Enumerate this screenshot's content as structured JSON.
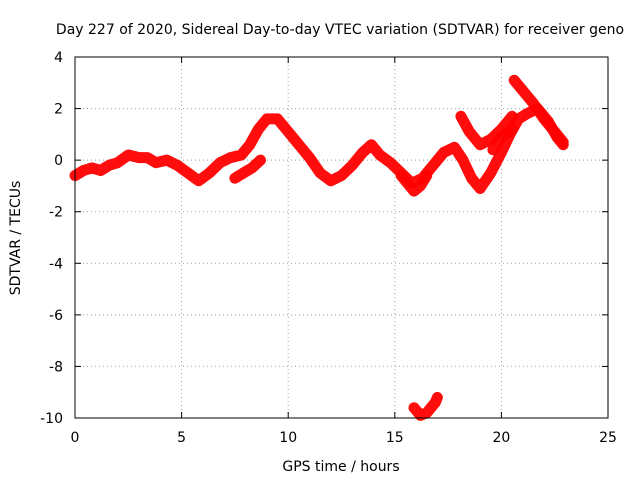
{
  "chart_data": {
    "type": "line",
    "title": "Day 227 of 2020, Sidereal Day-to-day VTEC variation (SDTVAR) for receiver geno",
    "xlabel": "GPS time / hours",
    "ylabel": "SDTVAR / TECUs",
    "xlim": [
      0,
      25
    ],
    "ylim": [
      -10,
      4
    ],
    "xticks": [
      0,
      5,
      10,
      15,
      20,
      25
    ],
    "yticks": [
      -10,
      -8,
      -6,
      -4,
      -2,
      0,
      2,
      4
    ],
    "grid": true,
    "legend": "none",
    "series_color": "#ff0000",
    "series": [
      {
        "values": [
          [
            0.0,
            -0.6
          ],
          [
            0.4,
            -0.4
          ],
          [
            0.8,
            -0.3
          ],
          [
            1.2,
            -0.4
          ],
          [
            1.6,
            -0.2
          ],
          [
            2.0,
            -0.1
          ],
          [
            2.5,
            0.2
          ],
          [
            3.0,
            0.1
          ],
          [
            3.4,
            0.1
          ],
          [
            3.8,
            -0.1
          ],
          [
            4.3,
            0.0
          ],
          [
            4.8,
            -0.2
          ],
          [
            5.3,
            -0.5
          ],
          [
            5.8,
            -0.8
          ],
          [
            6.3,
            -0.5
          ],
          [
            6.8,
            -0.1
          ],
          [
            7.3,
            0.1
          ],
          [
            7.8,
            0.2
          ],
          [
            8.2,
            0.6
          ],
          [
            8.6,
            1.2
          ],
          [
            9.0,
            1.6
          ],
          [
            9.5,
            1.6
          ],
          [
            10.0,
            1.1
          ],
          [
            10.5,
            0.6
          ],
          [
            11.0,
            0.1
          ],
          [
            11.5,
            -0.5
          ],
          [
            12.0,
            -0.8
          ],
          [
            12.5,
            -0.6
          ],
          [
            13.0,
            -0.2
          ],
          [
            13.5,
            0.3
          ],
          [
            13.9,
            0.6
          ],
          [
            14.3,
            0.2
          ],
          [
            14.8,
            -0.1
          ],
          [
            15.3,
            -0.5
          ],
          [
            15.8,
            -0.9
          ],
          [
            16.3,
            -0.7
          ],
          [
            16.8,
            -0.2
          ],
          [
            17.3,
            0.3
          ],
          [
            17.8,
            0.5
          ],
          [
            18.2,
            0.0
          ],
          [
            18.6,
            -0.7
          ],
          [
            19.0,
            -1.1
          ],
          [
            19.5,
            -0.5
          ],
          [
            20.0,
            0.3
          ],
          [
            20.4,
            1.0
          ],
          [
            20.8,
            1.6
          ],
          [
            21.2,
            1.8
          ],
          [
            21.7,
            2.0
          ],
          [
            22.2,
            1.5
          ],
          [
            22.6,
            0.9
          ],
          [
            22.9,
            0.6
          ]
        ]
      },
      {
        "values": [
          [
            7.5,
            -0.7
          ],
          [
            7.9,
            -0.5
          ],
          [
            8.3,
            -0.3
          ],
          [
            8.7,
            0.0
          ]
        ]
      },
      {
        "values": [
          [
            15.3,
            -0.6
          ],
          [
            15.6,
            -0.9
          ],
          [
            15.9,
            -1.2
          ],
          [
            16.2,
            -1.0
          ],
          [
            16.5,
            -0.6
          ]
        ]
      },
      {
        "values": [
          [
            18.1,
            1.7
          ],
          [
            18.5,
            1.1
          ],
          [
            19.0,
            0.6
          ],
          [
            19.5,
            0.8
          ],
          [
            20.0,
            1.2
          ],
          [
            20.5,
            1.7
          ]
        ]
      },
      {
        "values": [
          [
            20.6,
            3.1
          ],
          [
            21.0,
            2.7
          ],
          [
            21.5,
            2.2
          ],
          [
            22.0,
            1.6
          ],
          [
            22.5,
            1.1
          ],
          [
            22.9,
            0.7
          ]
        ]
      },
      {
        "values": [
          [
            19.6,
            0.4
          ],
          [
            20.0,
            0.9
          ],
          [
            20.5,
            1.2
          ]
        ]
      },
      {
        "values": [
          [
            15.9,
            -9.6
          ],
          [
            16.2,
            -9.9
          ],
          [
            16.5,
            -9.8
          ],
          [
            16.9,
            -9.4
          ],
          [
            17.0,
            -9.2
          ]
        ]
      }
    ]
  }
}
